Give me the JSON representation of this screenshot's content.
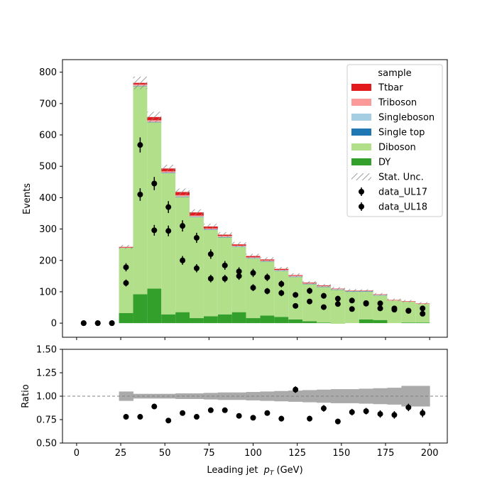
{
  "chart_data": [
    {
      "type": "bar",
      "stacked": true,
      "xlabel": "Leading jet  p_T (GeV)",
      "xlabel_text": "Leading jet ",
      "xlabel_var": "p",
      "xlabel_sub": "T",
      "xlabel_unit": " (GeV)",
      "ylabel": "Events",
      "xlim": [
        -8,
        210
      ],
      "ylim": [
        -45,
        840
      ],
      "x_ticks": [
        0,
        25,
        50,
        75,
        100,
        125,
        150,
        175,
        200
      ],
      "y_ticks": [
        0,
        100,
        200,
        300,
        400,
        500,
        600,
        700,
        800
      ],
      "bin_edges": [
        24,
        32,
        40,
        48,
        56,
        64,
        72,
        80,
        88,
        96,
        104,
        112,
        120,
        128,
        136,
        144,
        152,
        160,
        168,
        176,
        184,
        192,
        200
      ],
      "legend": {
        "title": "sample",
        "placement": "top-right",
        "entries": [
          "Ttbar",
          "Triboson",
          "Singleboson",
          "Single top",
          "Diboson",
          "DY",
          "Stat. Unc.",
          "data_UL17",
          "data_UL18"
        ]
      },
      "series": [
        {
          "name": "DY",
          "color": "#33a02c",
          "values": [
            32,
            92,
            110,
            28,
            35,
            16,
            22,
            28,
            35,
            16,
            24,
            20,
            12,
            6,
            2,
            -2,
            0,
            12,
            10,
            0,
            2,
            2
          ]
        },
        {
          "name": "Diboson",
          "color": "#b2df8a",
          "values": [
            208,
            663,
            530,
            450,
            367,
            322,
            275,
            245,
            208,
            190,
            172,
            146,
            135,
            118,
            113,
            108,
            100,
            88,
            78,
            72,
            66,
            59
          ]
        },
        {
          "name": "Single top",
          "color": "#1f78b4",
          "values": [
            0,
            1,
            1,
            1,
            1,
            1,
            1,
            1,
            1,
            1,
            1,
            1,
            1,
            1,
            1,
            1,
            1,
            1,
            1,
            0,
            0,
            0
          ]
        },
        {
          "name": "Singleboson",
          "color": "#a6cee3",
          "values": [
            0,
            1,
            1,
            1,
            1,
            1,
            1,
            1,
            1,
            1,
            1,
            1,
            1,
            1,
            1,
            1,
            1,
            1,
            1,
            0,
            0,
            0
          ]
        },
        {
          "name": "Triboson",
          "color": "#fb9a99",
          "values": [
            1,
            4,
            5,
            4,
            4,
            3,
            3,
            3,
            2,
            2,
            2,
            2,
            2,
            1,
            1,
            1,
            1,
            1,
            1,
            1,
            1,
            1
          ]
        },
        {
          "name": "Ttbar",
          "color": "#e31a1c",
          "values": [
            2,
            5,
            10,
            9,
            10,
            10,
            6,
            4,
            4,
            4,
            3,
            3,
            2,
            2,
            2,
            1,
            1,
            1,
            1,
            1,
            1,
            1
          ]
        }
      ],
      "stat_unc": {
        "name": "Stat. Unc.",
        "half_width": [
          6,
          20,
          17,
          12,
          11,
          10,
          9,
          8,
          8,
          7,
          7,
          6,
          6,
          5,
          5,
          5,
          5,
          4,
          4,
          4,
          4,
          4
        ]
      },
      "data": [
        {
          "name": "data_UL17",
          "x": [
            4,
            12,
            20,
            28,
            36,
            44,
            52,
            60,
            68,
            76,
            84,
            92,
            100,
            108,
            116,
            124,
            132,
            140,
            148,
            156,
            164,
            172,
            180,
            188,
            196
          ],
          "y": [
            0,
            0,
            0,
            178,
            568,
            445,
            370,
            310,
            272,
            220,
            184,
            165,
            160,
            146,
            125,
            90,
            103,
            87,
            78,
            72,
            64,
            63,
            47,
            40,
            47
          ],
          "err": [
            2,
            2,
            2,
            13,
            24,
            21,
            19,
            18,
            16,
            15,
            14,
            13,
            13,
            12,
            11,
            9,
            10,
            9,
            9,
            8,
            8,
            8,
            7,
            6,
            7
          ]
        },
        {
          "name": "data_UL18",
          "x": [
            4,
            12,
            20,
            28,
            36,
            44,
            52,
            60,
            68,
            76,
            84,
            92,
            100,
            108,
            116,
            124,
            132,
            140,
            148,
            156,
            164,
            172,
            180,
            188,
            196
          ],
          "y": [
            0,
            0,
            0,
            128,
            410,
            296,
            294,
            200,
            175,
            142,
            142,
            150,
            113,
            102,
            96,
            55,
            69,
            51,
            61,
            45,
            62,
            47,
            43,
            39,
            30
          ],
          "err": [
            2,
            2,
            2,
            11,
            20,
            17,
            17,
            14,
            13,
            12,
            12,
            12,
            11,
            10,
            10,
            7,
            8,
            7,
            8,
            7,
            8,
            7,
            7,
            6,
            5
          ]
        }
      ]
    },
    {
      "type": "scatter",
      "xlabel": "Leading jet  p_T (GeV)",
      "ylabel": "Ratio",
      "xlim": [
        -8,
        210
      ],
      "ylim": [
        0.5,
        1.5
      ],
      "y_ticks": [
        0.5,
        0.75,
        1.0,
        1.25,
        1.5
      ],
      "y_tick_labels": [
        "0.50",
        "0.75",
        "1.00",
        "1.25",
        "1.50"
      ],
      "x_ticks": [
        0,
        25,
        50,
        75,
        100,
        125,
        150,
        175,
        200
      ],
      "x_tick_labels": [
        "0",
        "25",
        "50",
        "75",
        "100",
        "125",
        "150",
        "175",
        "200"
      ],
      "reference_line": 1.0,
      "band_color": "#aaaaaa",
      "band": {
        "lo": [
          0.95,
          0.975,
          0.975,
          0.975,
          0.97,
          0.97,
          0.965,
          0.96,
          0.96,
          0.955,
          0.95,
          0.945,
          0.94,
          0.935,
          0.93,
          0.925,
          0.925,
          0.92,
          0.915,
          0.91,
          0.89,
          0.89
        ],
        "hi": [
          1.05,
          1.025,
          1.025,
          1.025,
          1.03,
          1.03,
          1.035,
          1.04,
          1.04,
          1.045,
          1.05,
          1.055,
          1.06,
          1.065,
          1.07,
          1.075,
          1.075,
          1.08,
          1.085,
          1.09,
          1.11,
          1.11
        ]
      },
      "points": {
        "x": [
          28,
          36,
          44,
          52,
          60,
          68,
          76,
          84,
          92,
          100,
          108,
          116,
          124,
          132,
          140,
          148,
          156,
          164,
          172,
          180,
          188,
          196
        ],
        "y": [
          0.78,
          0.78,
          0.89,
          0.74,
          0.82,
          0.78,
          0.85,
          0.85,
          0.79,
          0.77,
          0.82,
          0.76,
          1.07,
          0.76,
          0.87,
          0.73,
          0.83,
          0.84,
          0.81,
          0.8,
          0.88,
          0.82
        ],
        "err": [
          0.02,
          0.01,
          0.015,
          0.015,
          0.015,
          0.015,
          0.02,
          0.02,
          0.02,
          0.02,
          0.025,
          0.03,
          0.035,
          0.03,
          0.035,
          0.03,
          0.035,
          0.035,
          0.04,
          0.04,
          0.04,
          0.045
        ]
      }
    }
  ]
}
